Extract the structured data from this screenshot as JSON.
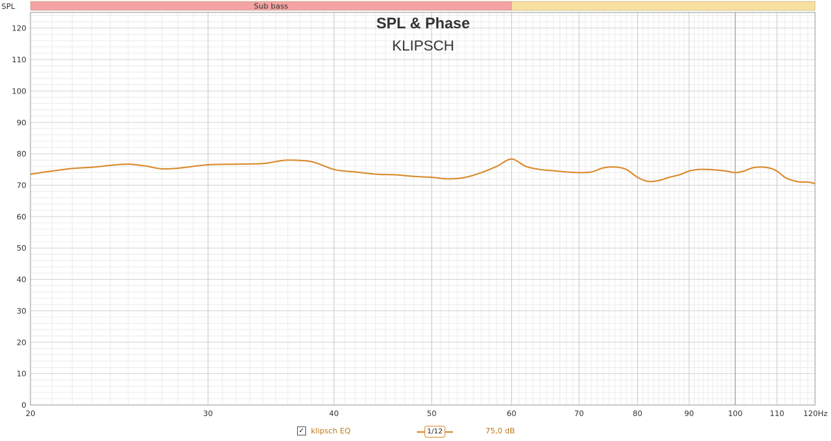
{
  "chart_data": {
    "type": "line",
    "title": "SPL & Phase",
    "subtitle": "KLIPSCH",
    "ylabel": "SPL",
    "xlabel": "",
    "x_scale": "log",
    "xlim": [
      20,
      120
    ],
    "ylim": [
      0,
      125
    ],
    "y_ticks": [
      0,
      10,
      20,
      30,
      40,
      50,
      60,
      70,
      80,
      90,
      100,
      110,
      120
    ],
    "x_ticks": [
      {
        "value": 20,
        "label": "20"
      },
      {
        "value": 30,
        "label": "30"
      },
      {
        "value": 40,
        "label": "40"
      },
      {
        "value": 50,
        "label": "50"
      },
      {
        "value": 60,
        "label": "60"
      },
      {
        "value": 70,
        "label": "70"
      },
      {
        "value": 80,
        "label": "80"
      },
      {
        "value": 90,
        "label": "90"
      },
      {
        "value": 100,
        "label": "100"
      },
      {
        "value": 110,
        "label": "110"
      },
      {
        "value": 120,
        "label": "120Hz"
      }
    ],
    "bands": [
      {
        "label": "Sub bass",
        "from": 20,
        "to": 60,
        "color": "#f4a3a3"
      },
      {
        "label": "",
        "from": 60,
        "to": 120,
        "color": "#f8e0a0"
      }
    ],
    "grid": true,
    "series": [
      {
        "name": "klipsch EQ",
        "color": "#d98a2a",
        "x": [
          20,
          21,
          22,
          23,
          24,
          25,
          26,
          27,
          28,
          30,
          32,
          34,
          35,
          36,
          38,
          40,
          42,
          44,
          46,
          48,
          50,
          52,
          54,
          56,
          58,
          60,
          62,
          64,
          66,
          68,
          70,
          72,
          74,
          76,
          78,
          80,
          82,
          84,
          86,
          88,
          90,
          92,
          94,
          96,
          98,
          100,
          102,
          104,
          106,
          108,
          110,
          112,
          114,
          116,
          118,
          120
        ],
        "values": [
          73.5,
          74.5,
          75.3,
          75.7,
          76.3,
          76.7,
          76.1,
          75.2,
          75.4,
          76.5,
          76.7,
          76.9,
          77.5,
          78.0,
          77.5,
          75.0,
          74.2,
          73.5,
          73.3,
          72.8,
          72.5,
          72.0,
          72.5,
          74.0,
          76.0,
          78.3,
          76.0,
          75.0,
          74.6,
          74.2,
          74.0,
          74.2,
          75.5,
          75.8,
          75.0,
          72.5,
          71.2,
          71.5,
          72.5,
          73.3,
          74.5,
          75.0,
          75.0,
          74.8,
          74.5,
          74.0,
          74.5,
          75.5,
          75.8,
          75.5,
          74.5,
          72.5,
          71.5,
          71.0,
          71.0,
          70.5
        ]
      }
    ]
  },
  "axis": {
    "y_name": "SPL"
  },
  "legend": {
    "check_glyph": "✓",
    "label": "klipsch EQ",
    "smoothing": "1/12",
    "level": "75,0 dB"
  }
}
